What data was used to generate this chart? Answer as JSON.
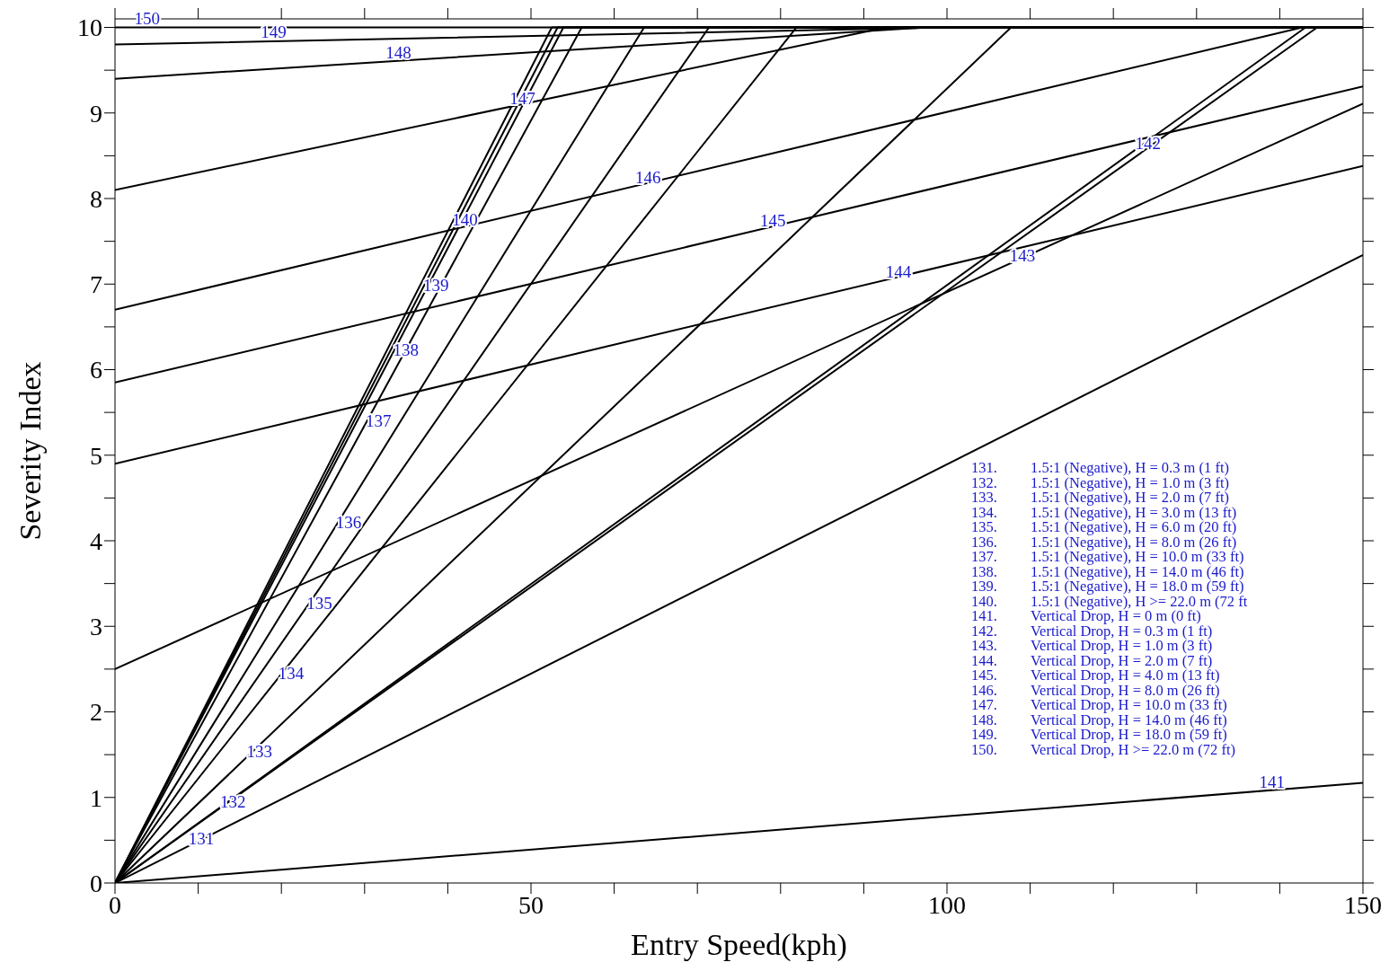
{
  "chart_data": {
    "type": "line",
    "xlabel": "Entry Speed(kph)",
    "ylabel": "Severity Index",
    "xlim": [
      0,
      150
    ],
    "ylim": [
      0,
      10.1
    ],
    "xticks": [
      0,
      {
        "value": 10,
        "label": null
      },
      {
        "value": 20,
        "label": null
      },
      {
        "value": 30,
        "label": null
      },
      {
        "value": 40,
        "label": null
      },
      50,
      {
        "value": 60,
        "label": null
      },
      {
        "value": 70,
        "label": null
      },
      {
        "value": 80,
        "label": null
      },
      {
        "value": 90,
        "label": null
      },
      100,
      {
        "value": 110,
        "label": null
      },
      {
        "value": 120,
        "label": null
      },
      {
        "value": 130,
        "label": null
      },
      {
        "value": 140,
        "label": null
      },
      150
    ],
    "yticks": [
      0,
      {
        "value": 0.5,
        "label": null
      },
      1,
      {
        "value": 1.5,
        "label": null
      },
      2,
      {
        "value": 2.5,
        "label": null
      },
      3,
      {
        "value": 3.5,
        "label": null
      },
      4,
      {
        "value": 4.5,
        "label": null
      },
      5,
      {
        "value": 5.5,
        "label": null
      },
      6,
      {
        "value": 6.5,
        "label": null
      },
      7,
      {
        "value": 7.5,
        "label": null
      },
      8,
      {
        "value": 8.5,
        "label": null
      },
      9,
      {
        "value": 9.5,
        "label": null
      },
      10
    ],
    "grid": false,
    "marker": "none",
    "line_style": "solid",
    "series": [
      {
        "name": "131",
        "color": "#000000",
        "x": [
          0,
          150
        ],
        "values": [
          0,
          7.34
        ]
      },
      {
        "name": "132",
        "color": "#000000",
        "x": [
          0,
          144.5,
          150
        ],
        "values": [
          0,
          10,
          10
        ]
      },
      {
        "name": "133",
        "color": "#000000",
        "x": [
          0,
          107.7,
          150
        ],
        "values": [
          0,
          10,
          10
        ]
      },
      {
        "name": "134",
        "color": "#000000",
        "x": [
          0,
          81.9,
          150
        ],
        "values": [
          0,
          10,
          10
        ]
      },
      {
        "name": "135",
        "color": "#000000",
        "x": [
          0,
          71.4,
          150
        ],
        "values": [
          0,
          10,
          10
        ]
      },
      {
        "name": "136",
        "color": "#000000",
        "x": [
          0,
          63.6,
          150
        ],
        "values": [
          0,
          10,
          10
        ]
      },
      {
        "name": "137",
        "color": "#000000",
        "x": [
          0,
          56.1,
          150
        ],
        "values": [
          0,
          10,
          10
        ]
      },
      {
        "name": "138",
        "color": "#000000",
        "x": [
          0,
          53.9,
          150
        ],
        "values": [
          0,
          10,
          10
        ]
      },
      {
        "name": "139",
        "color": "#000000",
        "x": [
          0,
          53.2,
          150
        ],
        "values": [
          0,
          10,
          10
        ]
      },
      {
        "name": "140",
        "color": "#000000",
        "x": [
          0,
          52.5,
          150
        ],
        "values": [
          0,
          10,
          10
        ]
      },
      {
        "name": "141",
        "color": "#000000",
        "x": [
          0,
          150
        ],
        "values": [
          0,
          1.17
        ]
      },
      {
        "name": "142",
        "color": "#000000",
        "x": [
          0,
          143.1,
          150
        ],
        "values": [
          0,
          10,
          10
        ]
      },
      {
        "name": "143",
        "color": "#000000",
        "x": [
          0,
          150
        ],
        "values": [
          2.5,
          9.11
        ]
      },
      {
        "name": "144",
        "color": "#000000",
        "x": [
          0,
          150
        ],
        "values": [
          4.9,
          8.38
        ]
      },
      {
        "name": "145",
        "color": "#000000",
        "x": [
          0,
          150
        ],
        "values": [
          5.85,
          9.31
        ]
      },
      {
        "name": "146",
        "color": "#000000",
        "x": [
          0,
          142.7,
          150
        ],
        "values": [
          6.7,
          10,
          10
        ]
      },
      {
        "name": "147",
        "color": "#000000",
        "x": [
          0,
          92.7,
          150
        ],
        "values": [
          8.1,
          10,
          10
        ]
      },
      {
        "name": "148",
        "color": "#000000",
        "x": [
          0,
          97.5,
          150
        ],
        "values": [
          9.4,
          10,
          10
        ]
      },
      {
        "name": "149",
        "color": "#000000",
        "x": [
          0,
          99.5,
          150
        ],
        "values": [
          9.8,
          10,
          10
        ]
      },
      {
        "name": "150",
        "color": "#000000",
        "x": [
          0,
          150
        ],
        "values": [
          10,
          10
        ]
      }
    ],
    "annotations": [
      "131. 1.5:1 (Negative), H = 0.3 m (1 ft)",
      "132. 1.5:1 (Negative), H = 1.0 m (3 ft)",
      "133. 1.5:1 (Negative), H = 2.0 m (7 ft)",
      "134. 1.5:1 (Negative), H = 3.0 m (13 ft)",
      "135. 1.5:1 (Negative), H = 6.0 m (20 ft)",
      "136. 1.5:1 (Negative), H = 8.0 m (26 ft)",
      "137. 1.5:1 (Negative), H = 10.0 m (33 ft)",
      "138. 1.5:1 (Negative), H = 14.0 m (46 ft)",
      "139. 1.5:1 (Negative), H = 18.0 m (59 ft)",
      "140. 1.5:1 (Negative), H >= 22.0 m (72 ft",
      "141. Vertical Drop, H = 0 m (0 ft)",
      "142. Vertical Drop, H = 0.3 m (1 ft)",
      "143. Vertical Drop, H = 1.0 m (3 ft)",
      "144. Vertical Drop, H = 2.0 m (7 ft)",
      "145. Vertical Drop, H = 4.0 m (13 ft)",
      "146. Vertical Drop, H = 8.0 m (26 ft)",
      "147. Vertical Drop, H = 10.0 m (33 ft)",
      "148. Vertical Drop, H = 14.0 m (46 ft)",
      "149. Vertical Drop, H = 18.0 m (59 ft)",
      "150. Vertical Drop, H >= 22.0 m (72 ft)"
    ]
  }
}
